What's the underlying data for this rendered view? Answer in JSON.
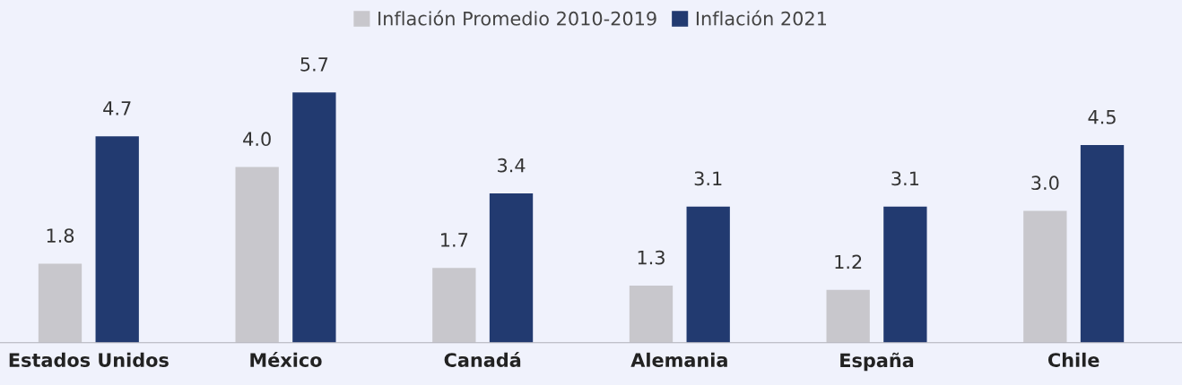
{
  "chart_data": {
    "type": "bar",
    "categories": [
      "Estados Unidos",
      "México",
      "Canadá",
      "Alemania",
      "España",
      "Chile"
    ],
    "series": [
      {
        "name": "Inflación Promedio 2010-2019",
        "color": "#c8c7cc",
        "values": [
          1.8,
          4.0,
          1.7,
          1.3,
          1.2,
          3.0
        ],
        "value_labels": [
          "1.8",
          "4.0",
          "1.7",
          "1.3",
          "1.2",
          "3.0"
        ]
      },
      {
        "name": "Inflación 2021",
        "color": "#223a70",
        "values": [
          4.7,
          5.7,
          3.4,
          3.1,
          3.1,
          4.5
        ],
        "value_labels": [
          "4.7",
          "5.7",
          "3.4",
          "3.1",
          "3.1",
          "4.5"
        ]
      }
    ],
    "legend": "top"
  }
}
